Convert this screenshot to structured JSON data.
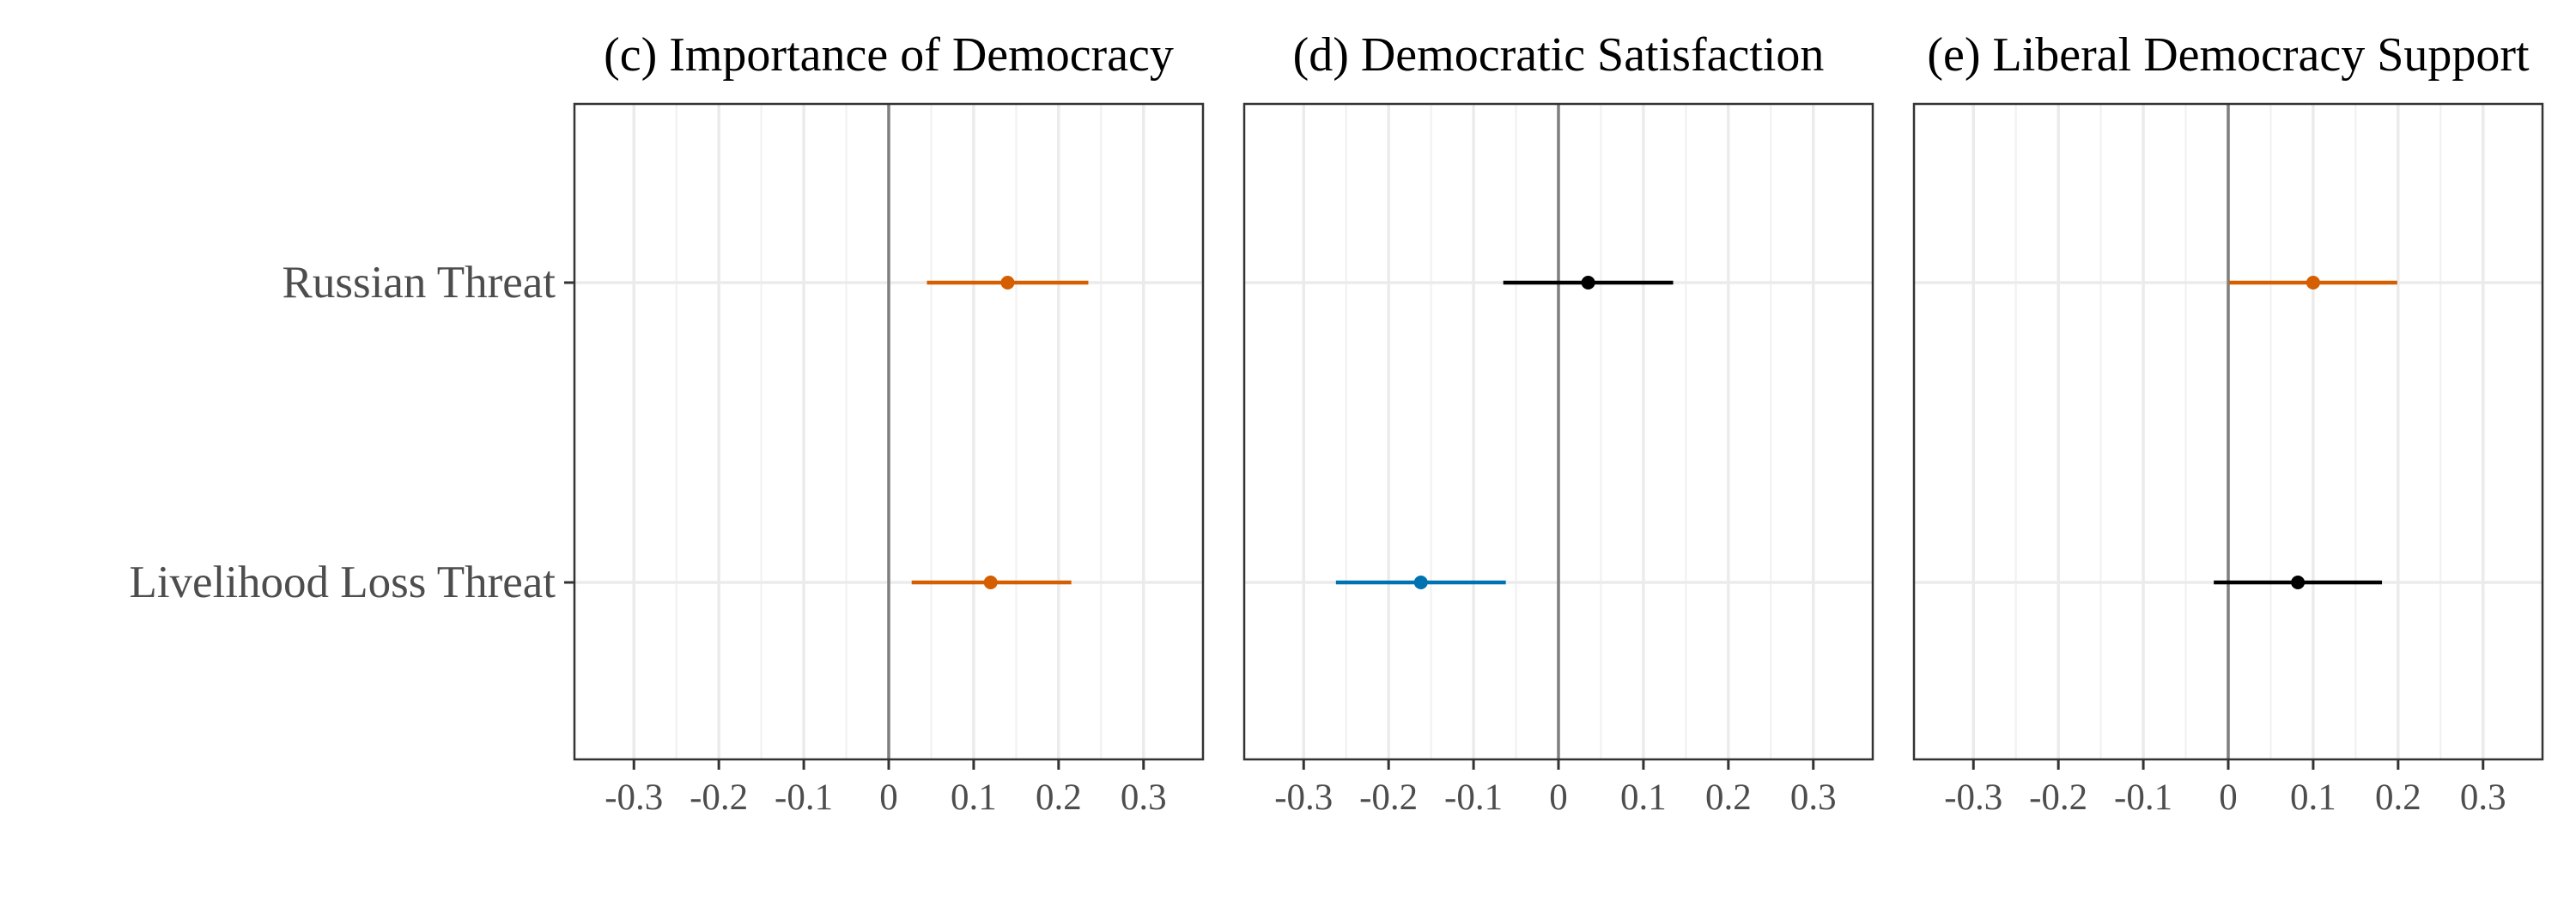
{
  "chart_data": {
    "type": "scatter",
    "subtype": "coefficient-plot",
    "categories": [
      "Russian Threat",
      "Livelihood Loss Threat"
    ],
    "xlim": [
      -0.37,
      0.37
    ],
    "xticks": [
      -0.3,
      -0.2,
      -0.1,
      0,
      0.1,
      0.2,
      0.3
    ],
    "xtick_labels": [
      "-0.3",
      "-0.2",
      "-0.1",
      "0",
      "0.1",
      "0.2",
      "0.3"
    ],
    "grid": true,
    "reference_line": 0,
    "colors": {
      "positive": "#d55e00",
      "negative": "#0072b2",
      "insignificant": "#000000"
    },
    "panels": [
      {
        "title": "(c) Importance of Democracy",
        "points": [
          {
            "label": "Russian Threat",
            "estimate": 0.14,
            "lower": 0.045,
            "upper": 0.235,
            "color": "#d55e00"
          },
          {
            "label": "Livelihood Loss Threat",
            "estimate": 0.12,
            "lower": 0.027,
            "upper": 0.215,
            "color": "#d55e00"
          }
        ]
      },
      {
        "title": "(d) Democratic Satisfaction",
        "points": [
          {
            "label": "Russian Threat",
            "estimate": 0.035,
            "lower": -0.065,
            "upper": 0.135,
            "color": "#000000"
          },
          {
            "label": "Livelihood Loss Threat",
            "estimate": -0.162,
            "lower": -0.262,
            "upper": -0.062,
            "color": "#0072b2"
          }
        ]
      },
      {
        "title": "(e) Liberal Democracy Support",
        "points": [
          {
            "label": "Russian Threat",
            "estimate": 0.1,
            "lower": 0.001,
            "upper": 0.199,
            "color": "#d55e00"
          },
          {
            "label": "Livelihood Loss Threat",
            "estimate": 0.082,
            "lower": -0.017,
            "upper": 0.181,
            "color": "#000000"
          }
        ]
      }
    ]
  }
}
